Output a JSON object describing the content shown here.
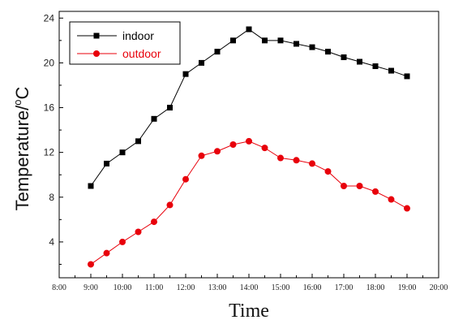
{
  "chart_data": {
    "type": "line",
    "xlabel": "Time",
    "ylabel": "Temperature/",
    "ylabel_unit": "o",
    "ylabel_unit_tail": "C",
    "x_ticks": [
      "8:00",
      "9:00",
      "10:00",
      "11:00",
      "12:00",
      "13:00",
      "14:00",
      "15:00",
      "16:00",
      "17:00",
      "18:00",
      "19:00",
      "20:00"
    ],
    "y_ticks": [
      4,
      8,
      12,
      16,
      20,
      24
    ],
    "xlim": [
      "8:00",
      "20:00"
    ],
    "ylim": [
      0.8,
      24.6
    ],
    "grid": false,
    "legend_position": "top-left",
    "x": [
      "9:00",
      "9:30",
      "10:00",
      "10:30",
      "11:00",
      "11:30",
      "12:00",
      "12:30",
      "13:00",
      "13:30",
      "14:00",
      "14:30",
      "15:00",
      "15:30",
      "16:00",
      "16:30",
      "17:00",
      "17:30",
      "18:00",
      "18:30",
      "19:00"
    ],
    "series": [
      {
        "name": "indoor",
        "color": "#000000",
        "marker": "square",
        "values": [
          9,
          11,
          12,
          13,
          15,
          16,
          19,
          20,
          21,
          22,
          23,
          22,
          22,
          21.7,
          21.4,
          21,
          20.5,
          20.1,
          19.7,
          19.3,
          18.8
        ]
      },
      {
        "name": "outdoor",
        "color": "#e8000b",
        "marker": "circle",
        "values": [
          2,
          3,
          4,
          4.9,
          5.8,
          7.3,
          9.6,
          11.7,
          12.1,
          12.7,
          13,
          12.4,
          11.5,
          11.3,
          11,
          10.3,
          9,
          9,
          8.5,
          7.8,
          7
        ]
      }
    ]
  }
}
